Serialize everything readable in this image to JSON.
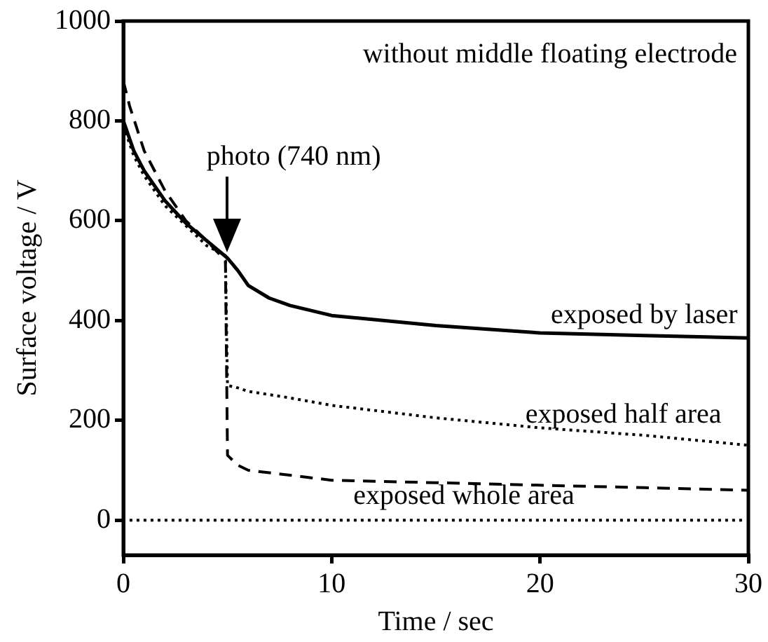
{
  "chart_data": {
    "type": "line",
    "xlabel": "Time / sec",
    "ylabel": "Surface voltage / V",
    "xlim": [
      0,
      30
    ],
    "ylim": [
      -70,
      1000
    ],
    "xticks": [
      0,
      10,
      20,
      30
    ],
    "yticks": [
      0,
      200,
      400,
      600,
      800,
      1000
    ],
    "grid": false,
    "legend": false,
    "marker": "none",
    "series": [
      {
        "color": "#000000",
        "line_style": "solid",
        "x": [
          0,
          0.5,
          1,
          2,
          3,
          4,
          5,
          5.5,
          6,
          7,
          8,
          10,
          15,
          20,
          25,
          30
        ],
        "values": [
          800,
          740,
          700,
          640,
          595,
          560,
          525,
          500,
          470,
          445,
          430,
          410,
          390,
          375,
          370,
          365
        ]
      },
      {
        "color": "#000000",
        "line_style": "dotted",
        "x": [
          0,
          0.5,
          1,
          2,
          3,
          4,
          4.9,
          5,
          5.5,
          6,
          8,
          10,
          15,
          20,
          25,
          30
        ],
        "values": [
          790,
          730,
          690,
          630,
          590,
          550,
          530,
          270,
          265,
          258,
          245,
          230,
          205,
          185,
          170,
          150
        ]
      },
      {
        "color": "#000000",
        "line_style": "dashed",
        "x": [
          0,
          0.3,
          1,
          2,
          3,
          4,
          4.9,
          5,
          5.5,
          6,
          8,
          10,
          15,
          20,
          25,
          30
        ],
        "values": [
          880,
          830,
          740,
          660,
          600,
          560,
          520,
          130,
          110,
          100,
          90,
          80,
          75,
          70,
          65,
          60
        ]
      },
      {
        "color": "#000000",
        "line_style": "dotted",
        "x": [
          0.3,
          29.7
        ],
        "values": [
          0,
          0
        ]
      }
    ],
    "annotations": [
      "without middle floating electrode",
      {
        "text": "photo (740 nm)",
        "x": 5,
        "y": 530
      },
      {
        "text": "exposed by laser",
        "x": 25,
        "y": 365
      },
      {
        "text": "exposed half area",
        "x": 24,
        "y": 165
      },
      "exposed whole area"
    ]
  }
}
